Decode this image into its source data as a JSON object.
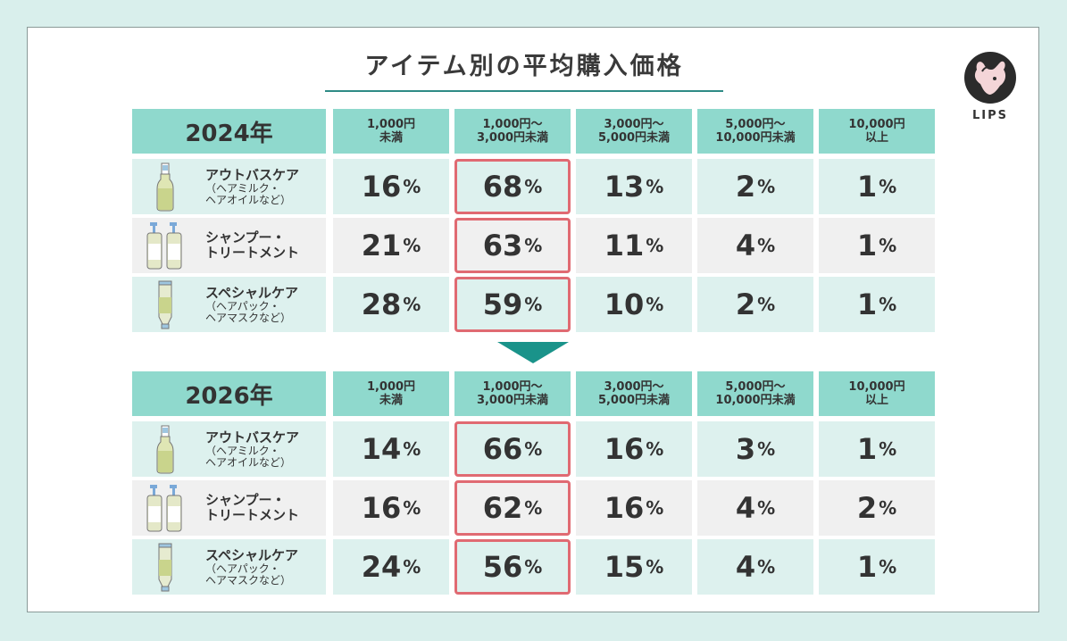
{
  "title": "アイテム別の平均購入価格",
  "logo_text": "LIPS",
  "chart_data": {
    "type": "table",
    "columns": [
      "1,000円\n未満",
      "1,000円〜\n3,000円未満",
      "3,000円〜\n5,000円未満",
      "5,000円〜\n10,000円未満",
      "10,000円\n以上"
    ],
    "unit": "%",
    "tables": [
      {
        "year": "2024年",
        "rows": [
          {
            "name": "アウトバスケア",
            "sub": "（ヘアミルク・\n  ヘアオイルなど）",
            "icon": "hair-oil-bottle-icon",
            "values": [
              16,
              68,
              13,
              2,
              1
            ]
          },
          {
            "name": "シャンプー・\nトリートメント",
            "sub": "",
            "icon": "shampoo-bottles-icon",
            "values": [
              21,
              63,
              11,
              4,
              1
            ]
          },
          {
            "name": "スペシャルケア",
            "sub": "（ヘアパック・\n  ヘアマスクなど）",
            "icon": "hair-mask-tube-icon",
            "values": [
              28,
              59,
              10,
              2,
              1
            ]
          }
        ]
      },
      {
        "year": "2026年",
        "rows": [
          {
            "name": "アウトバスケア",
            "sub": "（ヘアミルク・\n  ヘアオイルなど）",
            "icon": "hair-oil-bottle-icon",
            "values": [
              14,
              66,
              16,
              3,
              1
            ]
          },
          {
            "name": "シャンプー・\nトリートメント",
            "sub": "",
            "icon": "shampoo-bottles-icon",
            "values": [
              16,
              62,
              16,
              4,
              2
            ]
          },
          {
            "name": "スペシャルケア",
            "sub": "（ヘアパック・\n  ヘアマスクなど）",
            "icon": "hair-mask-tube-icon",
            "values": [
              24,
              56,
              15,
              4,
              1
            ]
          }
        ]
      }
    ],
    "highlight_column": 1,
    "colors": {
      "header": "#8fd9cd",
      "row_teal": "#ddf1ee",
      "row_grey": "#f0f0f0",
      "highlight": "#e06a72",
      "arrow": "#1a938a"
    }
  }
}
